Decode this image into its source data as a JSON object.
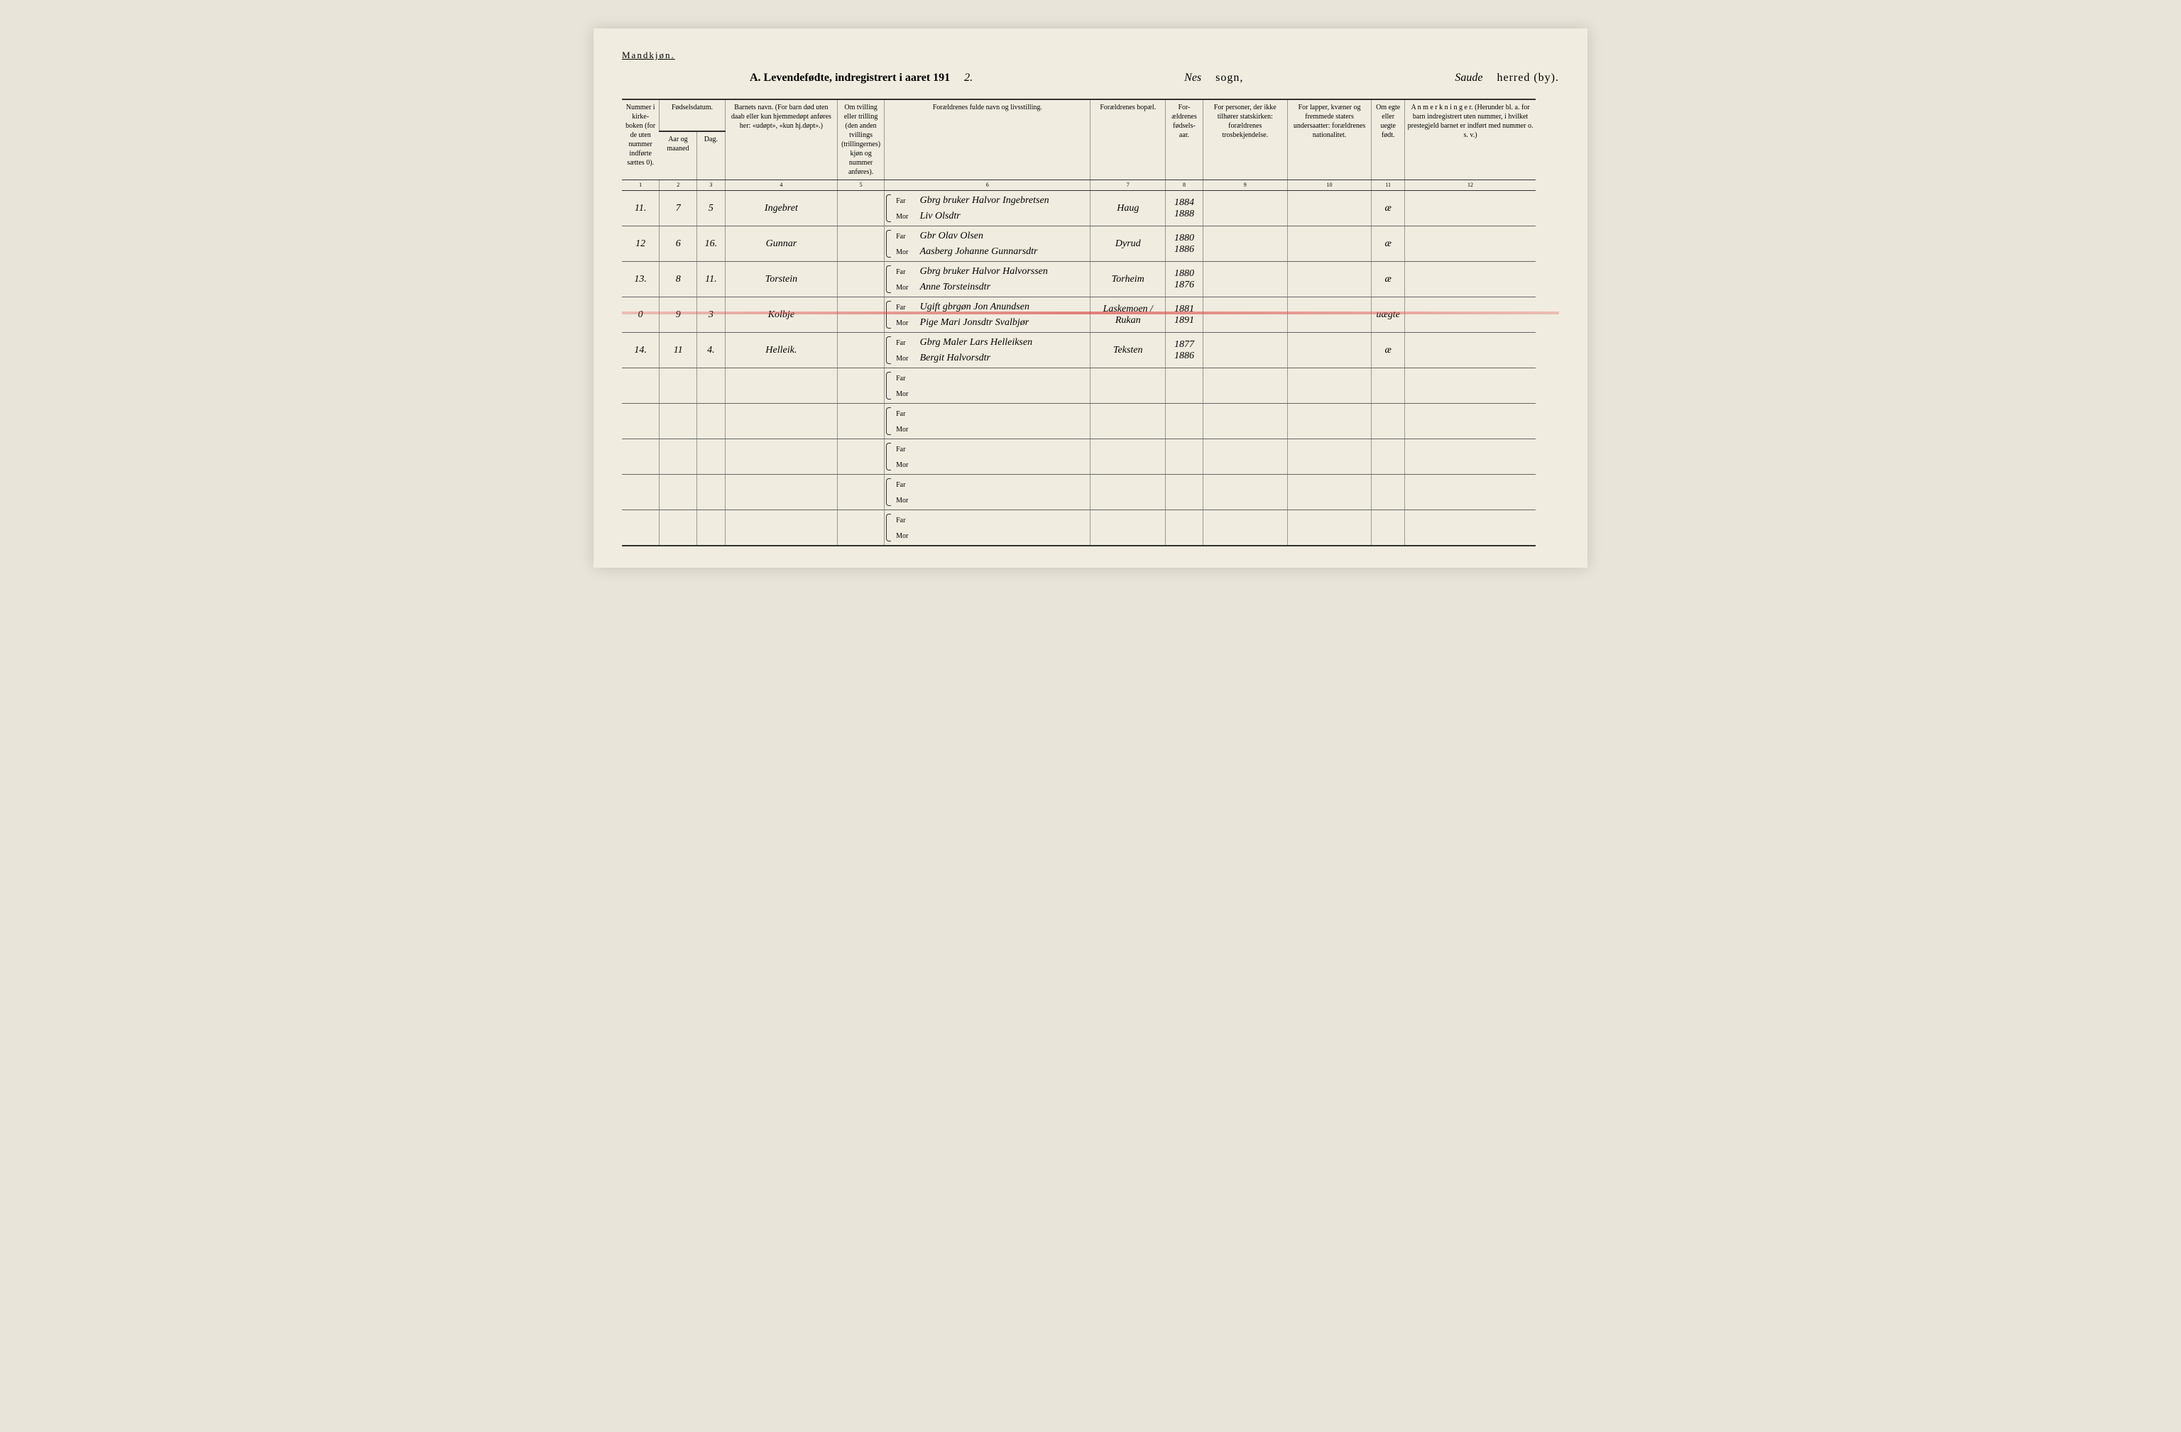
{
  "header": {
    "gender_label": "Mandkjøn.",
    "title_prefix": "A.  Levendefødte, indregistrert i aaret 191",
    "year_suffix": "2.",
    "sogn_value": "Nes",
    "sogn_label": "sogn,",
    "herred_value": "Saude",
    "herred_label": "herred (by)."
  },
  "columns": {
    "c1": "Nummer\ni kirke-\nboken\n(for de\nuten\nnummer\nindførte\nsættes\n0).",
    "c2_top": "Fødselsdatum.",
    "c2a": "Aar\nog\nmaaned",
    "c2b": "Dag.",
    "c3": "Barnets navn.\n\n(For barn død uten daab eller kun\nhjemmedøpt anføres her:\n«udøpt», «kun hj.døpt».)",
    "c4": "Om tvilling\neller trilling\n(den anden\ntvillings\n(trillingernes)\nkjøn og\nnummer\nanføres).",
    "c5": "Forældrenes fulde navn og livsstilling.",
    "c6": "Forældrenes bopæl.",
    "c7": "For-\nældrenes\nfødsels-\naar.",
    "c8": "For personer, der ikke\ntilhører statskirken:\nforældrenes trosbekjendelse.",
    "c9": "For lapper, kvæner og\nfremmede staters\nundersaatter:\nforældrenes nationalitet.",
    "c10": "Om\negte\neller\nuegte\nfødt.",
    "c11": "A n m e r k n i n g e r.\n(Herunder bl. a. for barn indregistrert\nuten nummer, i hvilket prestegjeld\nbarnet er indført med nummer o. s. v.)",
    "num1": "1",
    "num2": "2",
    "num3": "3",
    "num4": "4",
    "num5": "5",
    "num6": "6",
    "num7": "7",
    "num8": "8",
    "num9": "9",
    "num10": "10",
    "num11": "11",
    "num12": "12"
  },
  "labels": {
    "far": "Far",
    "mor": "Mor"
  },
  "rows": [
    {
      "num": "11.",
      "month": "7",
      "day": "5",
      "name": "Ingebret",
      "far": "Gbrg bruker Halvor Ingebretsen",
      "mor": "Liv Olsdtr",
      "bopael": "Haug",
      "year_far": "1884",
      "year_mor": "1888",
      "egte": "æ",
      "struck": false
    },
    {
      "num": "12",
      "month": "6",
      "day": "16.",
      "name": "Gunnar",
      "far": "Gbr Olav Olsen",
      "mor": "Aasberg Johanne Gunnarsdtr",
      "bopael": "Dyrud",
      "year_far": "1880",
      "year_mor": "1886",
      "egte": "æ",
      "struck": false
    },
    {
      "num": "13.",
      "month": "8",
      "day": "11.",
      "name": "Torstein",
      "far": "Gbrg bruker Halvor Halvorssen",
      "mor": "Anne Torsteinsdtr",
      "bopael": "Torheim",
      "year_far": "1880",
      "year_mor": "1876",
      "egte": "æ",
      "struck": false
    },
    {
      "num": "0",
      "month": "9",
      "day": "3",
      "name": "Kolbje",
      "far": "Ugift gbrgøn Jon Anundsen",
      "mor": "Pige Mari Jonsdtr Svalbjør",
      "bopael": "Laskemoen / Rukan",
      "year_far": "1881",
      "year_mor": "1891",
      "egte": "uægte",
      "struck": true
    },
    {
      "num": "14.",
      "month": "11",
      "day": "4.",
      "name": "Helleik.",
      "far": "Gbrg Maler Lars Helleiksen",
      "mor": "Bergit Halvorsdtr",
      "bopael": "Teksten",
      "year_far": "1877",
      "year_mor": "1886",
      "egte": "æ",
      "struck": false
    },
    {
      "num": "",
      "month": "",
      "day": "",
      "name": "",
      "far": "",
      "mor": "",
      "bopael": "",
      "year_far": "",
      "year_mor": "",
      "egte": "",
      "struck": false
    },
    {
      "num": "",
      "month": "",
      "day": "",
      "name": "",
      "far": "",
      "mor": "",
      "bopael": "",
      "year_far": "",
      "year_mor": "",
      "egte": "",
      "struck": false
    },
    {
      "num": "",
      "month": "",
      "day": "",
      "name": "",
      "far": "",
      "mor": "",
      "bopael": "",
      "year_far": "",
      "year_mor": "",
      "egte": "",
      "struck": false
    },
    {
      "num": "",
      "month": "",
      "day": "",
      "name": "",
      "far": "",
      "mor": "",
      "bopael": "",
      "year_far": "",
      "year_mor": "",
      "egte": "",
      "struck": false
    },
    {
      "num": "",
      "month": "",
      "day": "",
      "name": "",
      "far": "",
      "mor": "",
      "bopael": "",
      "year_far": "",
      "year_mor": "",
      "egte": "",
      "struck": false
    }
  ],
  "styling": {
    "page_bg": "#f0ecdf",
    "border_color": "#333333",
    "grid_color": "#999999",
    "strike_color": "#dc5050",
    "header_font_size": 10,
    "body_font_size": 14,
    "script_font": "Brush Script MT"
  }
}
